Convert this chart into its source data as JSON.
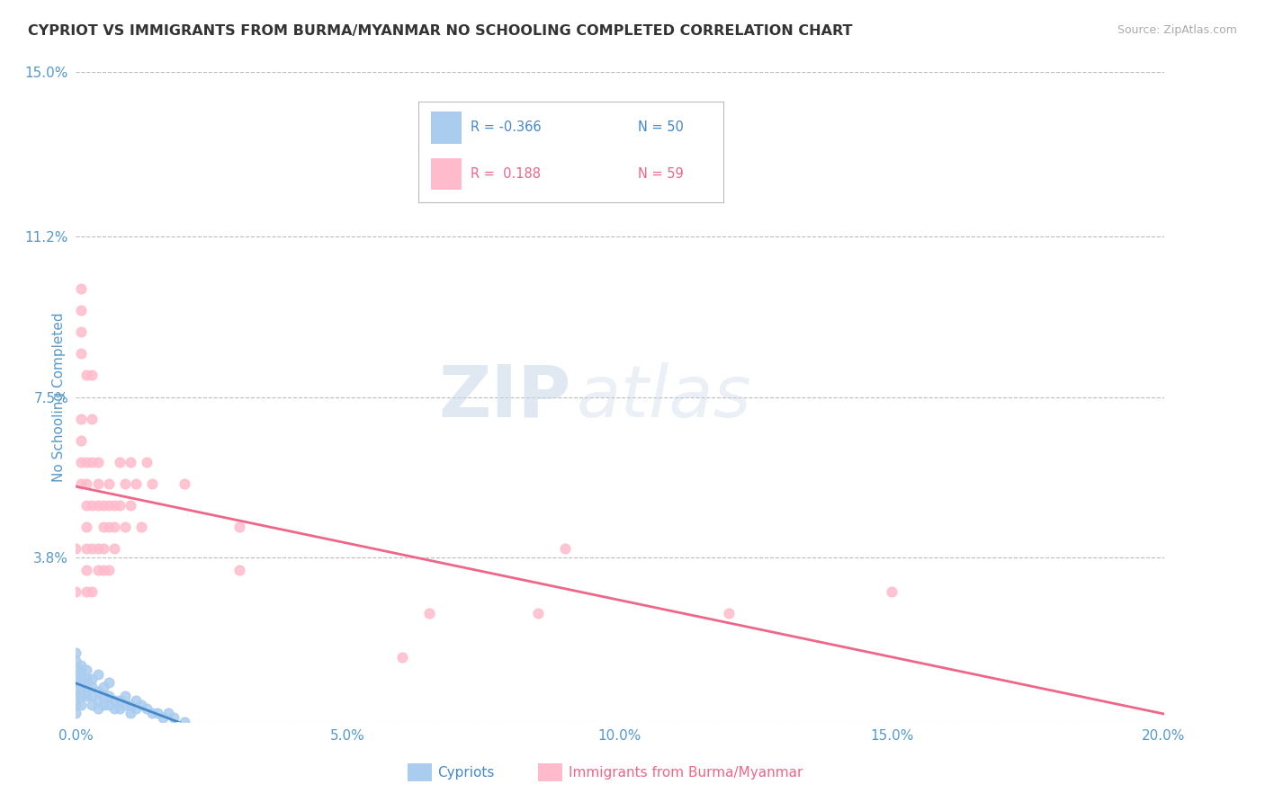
{
  "title": "CYPRIOT VS IMMIGRANTS FROM BURMA/MYANMAR NO SCHOOLING COMPLETED CORRELATION CHART",
  "source": "Source: ZipAtlas.com",
  "ylabel": "No Schooling Completed",
  "xlim": [
    0.0,
    0.2
  ],
  "ylim": [
    0.0,
    0.15
  ],
  "xticks": [
    0.0,
    0.05,
    0.1,
    0.15,
    0.2
  ],
  "xtick_labels": [
    "0.0%",
    "5.0%",
    "10.0%",
    "15.0%",
    "20.0%"
  ],
  "yticks": [
    0.0,
    0.038,
    0.075,
    0.112,
    0.15
  ],
  "ytick_labels": [
    "",
    "3.8%",
    "7.5%",
    "11.2%",
    "15.0%"
  ],
  "cypriot_color": "#aaccee",
  "burma_color": "#ffbbcc",
  "cypriot_line_color": "#4488cc",
  "burma_line_color": "#ee6688",
  "legend_R_cypriot": "-0.366",
  "legend_N_cypriot": "50",
  "legend_R_burma": "0.188",
  "legend_N_burma": "59",
  "cypriot_scatter": [
    [
      0.0,
      0.01
    ],
    [
      0.0,
      0.008
    ],
    [
      0.0,
      0.012
    ],
    [
      0.0,
      0.006
    ],
    [
      0.0,
      0.004
    ],
    [
      0.0,
      0.002
    ],
    [
      0.0,
      0.014
    ],
    [
      0.0,
      0.016
    ],
    [
      0.001,
      0.01
    ],
    [
      0.001,
      0.008
    ],
    [
      0.001,
      0.006
    ],
    [
      0.001,
      0.012
    ],
    [
      0.001,
      0.004
    ],
    [
      0.001,
      0.013
    ],
    [
      0.002,
      0.01
    ],
    [
      0.002,
      0.008
    ],
    [
      0.002,
      0.006
    ],
    [
      0.002,
      0.012
    ],
    [
      0.003,
      0.008
    ],
    [
      0.003,
      0.006
    ],
    [
      0.003,
      0.004
    ],
    [
      0.003,
      0.01
    ],
    [
      0.004,
      0.007
    ],
    [
      0.004,
      0.005
    ],
    [
      0.004,
      0.003
    ],
    [
      0.004,
      0.011
    ],
    [
      0.005,
      0.006
    ],
    [
      0.005,
      0.004
    ],
    [
      0.005,
      0.008
    ],
    [
      0.006,
      0.006
    ],
    [
      0.006,
      0.004
    ],
    [
      0.006,
      0.009
    ],
    [
      0.007,
      0.005
    ],
    [
      0.007,
      0.003
    ],
    [
      0.008,
      0.005
    ],
    [
      0.008,
      0.003
    ],
    [
      0.009,
      0.004
    ],
    [
      0.009,
      0.006
    ],
    [
      0.01,
      0.004
    ],
    [
      0.01,
      0.002
    ],
    [
      0.011,
      0.003
    ],
    [
      0.011,
      0.005
    ],
    [
      0.012,
      0.004
    ],
    [
      0.013,
      0.003
    ],
    [
      0.014,
      0.002
    ],
    [
      0.015,
      0.002
    ],
    [
      0.016,
      0.001
    ],
    [
      0.017,
      0.002
    ],
    [
      0.018,
      0.001
    ],
    [
      0.02,
      0.0
    ]
  ],
  "burma_scatter": [
    [
      0.0,
      0.04
    ],
    [
      0.0,
      0.03
    ],
    [
      0.001,
      0.085
    ],
    [
      0.001,
      0.09
    ],
    [
      0.001,
      0.095
    ],
    [
      0.001,
      0.1
    ],
    [
      0.001,
      0.055
    ],
    [
      0.001,
      0.06
    ],
    [
      0.001,
      0.065
    ],
    [
      0.001,
      0.07
    ],
    [
      0.002,
      0.08
    ],
    [
      0.002,
      0.06
    ],
    [
      0.002,
      0.05
    ],
    [
      0.002,
      0.045
    ],
    [
      0.002,
      0.04
    ],
    [
      0.002,
      0.035
    ],
    [
      0.002,
      0.03
    ],
    [
      0.002,
      0.055
    ],
    [
      0.003,
      0.07
    ],
    [
      0.003,
      0.06
    ],
    [
      0.003,
      0.05
    ],
    [
      0.003,
      0.04
    ],
    [
      0.003,
      0.03
    ],
    [
      0.003,
      0.08
    ],
    [
      0.004,
      0.055
    ],
    [
      0.004,
      0.05
    ],
    [
      0.004,
      0.04
    ],
    [
      0.004,
      0.035
    ],
    [
      0.004,
      0.06
    ],
    [
      0.005,
      0.05
    ],
    [
      0.005,
      0.045
    ],
    [
      0.005,
      0.04
    ],
    [
      0.005,
      0.035
    ],
    [
      0.006,
      0.055
    ],
    [
      0.006,
      0.05
    ],
    [
      0.006,
      0.045
    ],
    [
      0.006,
      0.035
    ],
    [
      0.007,
      0.05
    ],
    [
      0.007,
      0.045
    ],
    [
      0.007,
      0.04
    ],
    [
      0.008,
      0.06
    ],
    [
      0.008,
      0.05
    ],
    [
      0.009,
      0.055
    ],
    [
      0.009,
      0.045
    ],
    [
      0.01,
      0.06
    ],
    [
      0.01,
      0.05
    ],
    [
      0.011,
      0.055
    ],
    [
      0.012,
      0.045
    ],
    [
      0.013,
      0.06
    ],
    [
      0.014,
      0.055
    ],
    [
      0.02,
      0.055
    ],
    [
      0.03,
      0.045
    ],
    [
      0.03,
      0.035
    ],
    [
      0.06,
      0.015
    ],
    [
      0.065,
      0.025
    ],
    [
      0.085,
      0.025
    ],
    [
      0.09,
      0.04
    ],
    [
      0.12,
      0.025
    ],
    [
      0.15,
      0.03
    ]
  ],
  "watermark_zip": "ZIP",
  "watermark_atlas": "atlas",
  "background_color": "#ffffff",
  "grid_color": "#bbbbbb",
  "title_color": "#333333",
  "tick_label_color": "#5599cc",
  "source_color": "#aaaaaa"
}
